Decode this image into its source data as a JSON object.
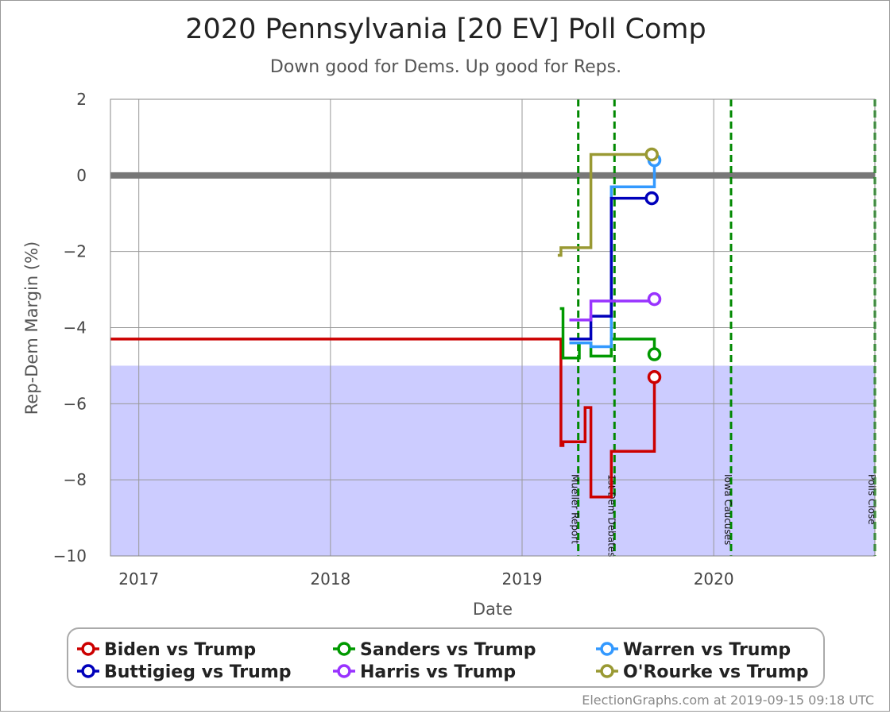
{
  "chart_data": {
    "type": "line",
    "title": "2020 Pennsylvania [20 EV] Poll Comp",
    "subtitle": "Down good for Dems. Up good for Reps.",
    "xlabel": "Date",
    "ylabel": "Rep-Dem Margin (%)",
    "xlim": [
      "2016-11-08",
      "2020-11-03"
    ],
    "ylim": [
      -10,
      2
    ],
    "y_ticks": [
      2,
      0,
      -2,
      -4,
      -6,
      -8,
      -10
    ],
    "y_tick_labels": [
      "2",
      "0",
      "−2",
      "−4",
      "−6",
      "−8",
      "−10"
    ],
    "x_ticks": [
      {
        "date": "2017-01-01",
        "label": "2017"
      },
      {
        "date": "2018-01-01",
        "label": "2018"
      },
      {
        "date": "2019-01-01",
        "label": "2019"
      },
      {
        "date": "2020-01-01",
        "label": "2020"
      }
    ],
    "reference_line": 0,
    "shaded_band": {
      "from": -10,
      "to": -5,
      "color": "#ccccff"
    },
    "events": [
      {
        "date": "2019-04-18",
        "label": "Mueller Report"
      },
      {
        "date": "2019-06-26",
        "label": "1st Dem Debates"
      },
      {
        "date": "2020-02-03",
        "label": "Iowa Caucuses"
      },
      {
        "date": "2020-11-03",
        "label": "Polls Close"
      }
    ],
    "grid": true,
    "legend_position": "bottom",
    "series": [
      {
        "name": "Biden vs Trump",
        "color": "#cc0000",
        "steps": [
          [
            "2016-11-08",
            -4.3
          ],
          [
            "2019-03-16",
            -7.1
          ],
          [
            "2019-03-20",
            -7.0
          ],
          [
            "2019-04-20",
            -7.0
          ],
          [
            "2019-05-01",
            -6.1
          ],
          [
            "2019-05-12",
            -8.45
          ],
          [
            "2019-06-20",
            -7.25
          ],
          [
            "2019-09-10",
            -5.3
          ]
        ]
      },
      {
        "name": "Sanders vs Trump",
        "color": "#009900",
        "steps": [
          [
            "2019-03-14",
            -3.5
          ],
          [
            "2019-03-20",
            -4.8
          ],
          [
            "2019-04-20",
            -4.4
          ],
          [
            "2019-05-12",
            -4.75
          ],
          [
            "2019-06-20",
            -4.3
          ],
          [
            "2019-09-10",
            -4.7
          ]
        ]
      },
      {
        "name": "Warren vs Trump",
        "color": "#3399ff",
        "steps": [
          [
            "2019-04-01",
            -4.4
          ],
          [
            "2019-05-12",
            -4.5
          ],
          [
            "2019-06-20",
            -0.3
          ],
          [
            "2019-09-10",
            0.4
          ]
        ]
      },
      {
        "name": "Buttigieg vs Trump",
        "color": "#0000bb",
        "steps": [
          [
            "2019-04-01",
            -4.3
          ],
          [
            "2019-05-12",
            -3.7
          ],
          [
            "2019-06-20",
            -0.6
          ],
          [
            "2019-09-05",
            -0.6
          ]
        ]
      },
      {
        "name": "Harris vs Trump",
        "color": "#9933ff",
        "steps": [
          [
            "2019-04-01",
            -3.8
          ],
          [
            "2019-05-12",
            -3.3
          ],
          [
            "2019-09-10",
            -3.25
          ]
        ]
      },
      {
        "name": "O'Rourke vs Trump",
        "color": "#999933",
        "steps": [
          [
            "2019-03-10",
            -2.1
          ],
          [
            "2019-03-16",
            -1.9
          ],
          [
            "2019-05-12",
            0.55
          ],
          [
            "2019-09-05",
            0.55
          ]
        ]
      }
    ]
  },
  "footer": "ElectionGraphs.com at 2019-09-15 09:18 UTC"
}
